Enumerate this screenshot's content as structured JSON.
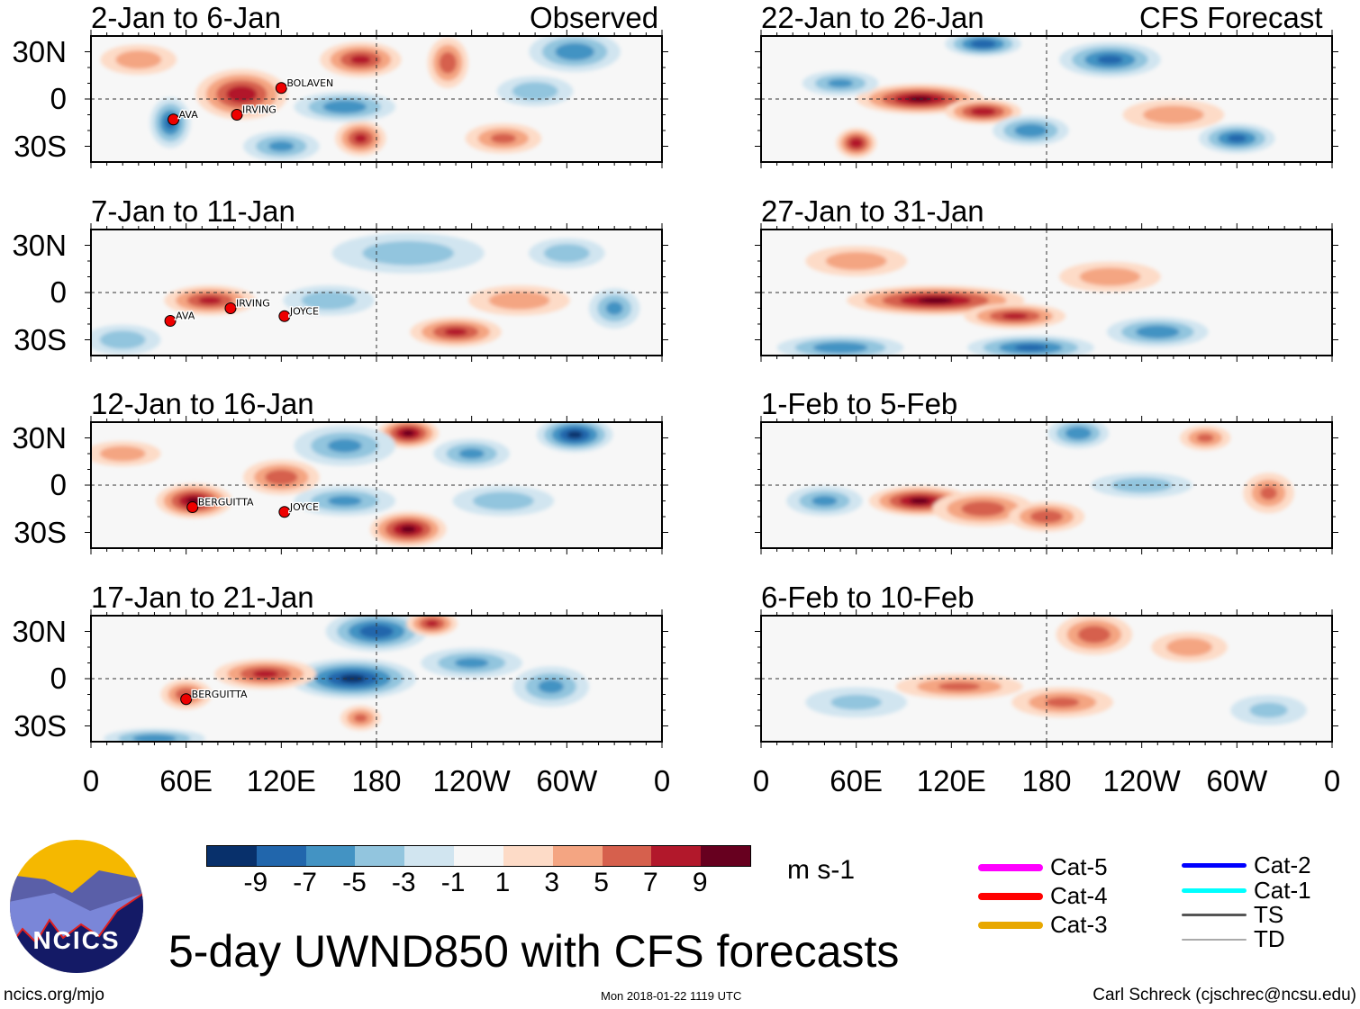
{
  "title": "5-day UWND850 with CFS forecasts",
  "footer": {
    "left": "ncics.org/mjo",
    "center": "Mon 2018-01-22 1119 UTC",
    "right": "Carl Schreck (cjschrec@ncsu.edu)"
  },
  "logo_text": "NCICS",
  "units": "m s-1",
  "column_labels": {
    "left": "Observed",
    "right": "CFS Forecast"
  },
  "lat_ticks": [
    "30N",
    "0",
    "30S"
  ],
  "lon_ticks": [
    "0",
    "60E",
    "120E",
    "180",
    "120W",
    "60W",
    "0"
  ],
  "chart_data": {
    "type": "heatmap",
    "title": "5-day UWND850 with CFS forecasts",
    "units": "m s-1",
    "x_range_lon": [
      0,
      360
    ],
    "y_range_lat": [
      -40,
      40
    ],
    "colorbar": {
      "levels": [
        "-9",
        "-7",
        "-5",
        "-3",
        "-1",
        "1",
        "3",
        "5",
        "7",
        "9"
      ],
      "colors": [
        "#08306b",
        "#2166ac",
        "#4393c3",
        "#92c5de",
        "#d1e5f0",
        "#f7f7f7",
        "#fddbc7",
        "#f4a582",
        "#d6604d",
        "#b2182b",
        "#67001f"
      ]
    },
    "panels": [
      {
        "label": "2-Jan to 6-Jan",
        "kind": "Observed",
        "anomalies": [
          {
            "lon": 95,
            "lat": 3,
            "v": 8,
            "rx": 18,
            "ry": 10
          },
          {
            "lon": 170,
            "lat": 25,
            "v": 7,
            "rx": 16,
            "ry": 7
          },
          {
            "lon": 170,
            "lat": -25,
            "v": 7,
            "rx": 10,
            "ry": 7
          },
          {
            "lon": 160,
            "lat": -5,
            "v": -6,
            "rx": 20,
            "ry": 6
          },
          {
            "lon": 50,
            "lat": -15,
            "v": -7,
            "rx": 8,
            "ry": 10
          },
          {
            "lon": 225,
            "lat": 23,
            "v": 6,
            "rx": 8,
            "ry": 10
          },
          {
            "lon": 305,
            "lat": 30,
            "v": -6,
            "rx": 18,
            "ry": 8
          },
          {
            "lon": 260,
            "lat": -25,
            "v": 5,
            "rx": 15,
            "ry": 6
          },
          {
            "lon": 120,
            "lat": -30,
            "v": -5,
            "rx": 15,
            "ry": 6
          },
          {
            "lon": 280,
            "lat": 5,
            "v": -4,
            "rx": 15,
            "ry": 6
          },
          {
            "lon": 30,
            "lat": 25,
            "v": 4,
            "rx": 15,
            "ry": 6
          }
        ],
        "storms": [
          {
            "name": "BOLAVEN",
            "lon": 120,
            "lat": 7
          },
          {
            "name": "AVA",
            "lon": 52,
            "lat": -13
          },
          {
            "name": "IRVING",
            "lon": 92,
            "lat": -10
          }
        ]
      },
      {
        "label": "7-Jan to 11-Jan",
        "kind": "Observed",
        "anomalies": [
          {
            "lon": 75,
            "lat": -5,
            "v": 7,
            "rx": 18,
            "ry": 6
          },
          {
            "lon": 230,
            "lat": -25,
            "v": 7,
            "rx": 18,
            "ry": 6
          },
          {
            "lon": 200,
            "lat": 25,
            "v": -4,
            "rx": 30,
            "ry": 8
          },
          {
            "lon": 150,
            "lat": -5,
            "v": -4,
            "rx": 18,
            "ry": 6
          },
          {
            "lon": 330,
            "lat": -10,
            "v": -5,
            "rx": 10,
            "ry": 8
          },
          {
            "lon": 270,
            "lat": -5,
            "v": 4,
            "rx": 20,
            "ry": 6
          },
          {
            "lon": 300,
            "lat": 25,
            "v": -4,
            "rx": 15,
            "ry": 6
          },
          {
            "lon": 20,
            "lat": -30,
            "v": -4,
            "rx": 15,
            "ry": 6
          }
        ],
        "storms": [
          {
            "name": "IRVING",
            "lon": 88,
            "lat": -10
          },
          {
            "name": "AVA",
            "lon": 50,
            "lat": -18
          },
          {
            "name": "JOYCE",
            "lon": 122,
            "lat": -15
          }
        ]
      },
      {
        "label": "12-Jan to 16-Jan",
        "kind": "Observed",
        "anomalies": [
          {
            "lon": 65,
            "lat": -10,
            "v": 9,
            "rx": 15,
            "ry": 7
          },
          {
            "lon": 120,
            "lat": 5,
            "v": 6,
            "rx": 15,
            "ry": 7
          },
          {
            "lon": 200,
            "lat": 33,
            "v": 9,
            "rx": 12,
            "ry": 6
          },
          {
            "lon": 200,
            "lat": -28,
            "v": 9,
            "rx": 15,
            "ry": 7
          },
          {
            "lon": 305,
            "lat": 32,
            "v": -9,
            "rx": 15,
            "ry": 7
          },
          {
            "lon": 160,
            "lat": 25,
            "v": -5,
            "rx": 20,
            "ry": 8
          },
          {
            "lon": 160,
            "lat": -10,
            "v": -5,
            "rx": 20,
            "ry": 6
          },
          {
            "lon": 260,
            "lat": -10,
            "v": -4,
            "rx": 20,
            "ry": 6
          },
          {
            "lon": 240,
            "lat": 20,
            "v": -5,
            "rx": 15,
            "ry": 6
          },
          {
            "lon": 20,
            "lat": 20,
            "v": 4,
            "rx": 15,
            "ry": 5
          }
        ],
        "storms": [
          {
            "name": "BERGUITTA",
            "lon": 64,
            "lat": -14
          },
          {
            "name": "JOYCE",
            "lon": 122,
            "lat": -17
          }
        ]
      },
      {
        "label": "17-Jan to 21-Jan",
        "kind": "Observed",
        "anomalies": [
          {
            "lon": 165,
            "lat": 0,
            "v": -9,
            "rx": 25,
            "ry": 8
          },
          {
            "lon": 180,
            "lat": 30,
            "v": -8,
            "rx": 20,
            "ry": 8
          },
          {
            "lon": 110,
            "lat": 3,
            "v": 7,
            "rx": 20,
            "ry": 6
          },
          {
            "lon": 215,
            "lat": 35,
            "v": 7,
            "rx": 10,
            "ry": 5
          },
          {
            "lon": 60,
            "lat": -10,
            "v": 6,
            "rx": 10,
            "ry": 6
          },
          {
            "lon": 170,
            "lat": -25,
            "v": 5,
            "rx": 8,
            "ry": 5
          },
          {
            "lon": 290,
            "lat": -5,
            "v": -5,
            "rx": 15,
            "ry": 8
          },
          {
            "lon": 240,
            "lat": 10,
            "v": -5,
            "rx": 20,
            "ry": 6
          },
          {
            "lon": 40,
            "lat": -38,
            "v": -6,
            "rx": 20,
            "ry": 4
          }
        ],
        "storms": [
          {
            "name": "BERGUITTA",
            "lon": 60,
            "lat": -13
          }
        ]
      },
      {
        "label": "22-Jan to 26-Jan",
        "kind": "CFS Forecast",
        "anomalies": [
          {
            "lon": 100,
            "lat": 0,
            "v": 9,
            "rx": 25,
            "ry": 6
          },
          {
            "lon": 140,
            "lat": -8,
            "v": 8,
            "rx": 15,
            "ry": 5
          },
          {
            "lon": 60,
            "lat": -28,
            "v": 8,
            "rx": 8,
            "ry": 6
          },
          {
            "lon": 170,
            "lat": -20,
            "v": -6,
            "rx": 15,
            "ry": 6
          },
          {
            "lon": 220,
            "lat": 25,
            "v": -7,
            "rx": 20,
            "ry": 7
          },
          {
            "lon": 300,
            "lat": -25,
            "v": -7,
            "rx": 15,
            "ry": 6
          },
          {
            "lon": 140,
            "lat": 35,
            "v": -8,
            "rx": 15,
            "ry": 5
          },
          {
            "lon": 50,
            "lat": 10,
            "v": -5,
            "rx": 15,
            "ry": 5
          },
          {
            "lon": 260,
            "lat": -10,
            "v": 4,
            "rx": 20,
            "ry": 6
          }
        ],
        "storms": []
      },
      {
        "label": "27-Jan to 31-Jan",
        "kind": "CFS Forecast",
        "anomalies": [
          {
            "lon": 110,
            "lat": -5,
            "v": 9,
            "rx": 35,
            "ry": 6
          },
          {
            "lon": 160,
            "lat": -15,
            "v": 7,
            "rx": 20,
            "ry": 5
          },
          {
            "lon": 50,
            "lat": -35,
            "v": -6,
            "rx": 25,
            "ry": 5
          },
          {
            "lon": 170,
            "lat": -35,
            "v": -7,
            "rx": 25,
            "ry": 5
          },
          {
            "lon": 250,
            "lat": -25,
            "v": -6,
            "rx": 20,
            "ry": 6
          },
          {
            "lon": 220,
            "lat": 10,
            "v": 4,
            "rx": 20,
            "ry": 6
          },
          {
            "lon": 60,
            "lat": 20,
            "v": 4,
            "rx": 20,
            "ry": 6
          }
        ],
        "storms": []
      },
      {
        "label": "1-Feb to 5-Feb",
        "kind": "CFS Forecast",
        "anomalies": [
          {
            "lon": 100,
            "lat": -10,
            "v": 9,
            "rx": 20,
            "ry": 6
          },
          {
            "lon": 140,
            "lat": -15,
            "v": 6,
            "rx": 20,
            "ry": 7
          },
          {
            "lon": 200,
            "lat": 33,
            "v": -6,
            "rx": 12,
            "ry": 6
          },
          {
            "lon": 180,
            "lat": -20,
            "v": 6,
            "rx": 15,
            "ry": 6
          },
          {
            "lon": 320,
            "lat": -5,
            "v": 5,
            "rx": 10,
            "ry": 8
          },
          {
            "lon": 40,
            "lat": -10,
            "v": -5,
            "rx": 15,
            "ry": 6
          },
          {
            "lon": 280,
            "lat": 30,
            "v": 5,
            "rx": 10,
            "ry": 5
          },
          {
            "lon": 240,
            "lat": 0,
            "v": -4,
            "rx": 20,
            "ry": 5
          }
        ],
        "storms": []
      },
      {
        "label": "6-Feb to 10-Feb",
        "kind": "CFS Forecast",
        "anomalies": [
          {
            "lon": 125,
            "lat": -5,
            "v": 5,
            "rx": 25,
            "ry": 5
          },
          {
            "lon": 190,
            "lat": -15,
            "v": 5,
            "rx": 20,
            "ry": 6
          },
          {
            "lon": 210,
            "lat": 28,
            "v": 6,
            "rx": 15,
            "ry": 8
          },
          {
            "lon": 60,
            "lat": -15,
            "v": -3,
            "rx": 20,
            "ry": 6
          },
          {
            "lon": 270,
            "lat": 20,
            "v": 4,
            "rx": 15,
            "ry": 6
          },
          {
            "lon": 320,
            "lat": -20,
            "v": -3,
            "rx": 15,
            "ry": 6
          }
        ],
        "storms": []
      }
    ]
  },
  "tc_legend": [
    {
      "label": "Cat-5",
      "color": "#ff00ff"
    },
    {
      "label": "Cat-4",
      "color": "#ff0000"
    },
    {
      "label": "Cat-3",
      "color": "#e8a800"
    },
    {
      "label": "Cat-2",
      "color": "#0000ff"
    },
    {
      "label": "Cat-1",
      "color": "#00ffff"
    },
    {
      "label": "TS",
      "color": "#555555"
    },
    {
      "label": "TD",
      "color": "#aaaaaa"
    }
  ]
}
